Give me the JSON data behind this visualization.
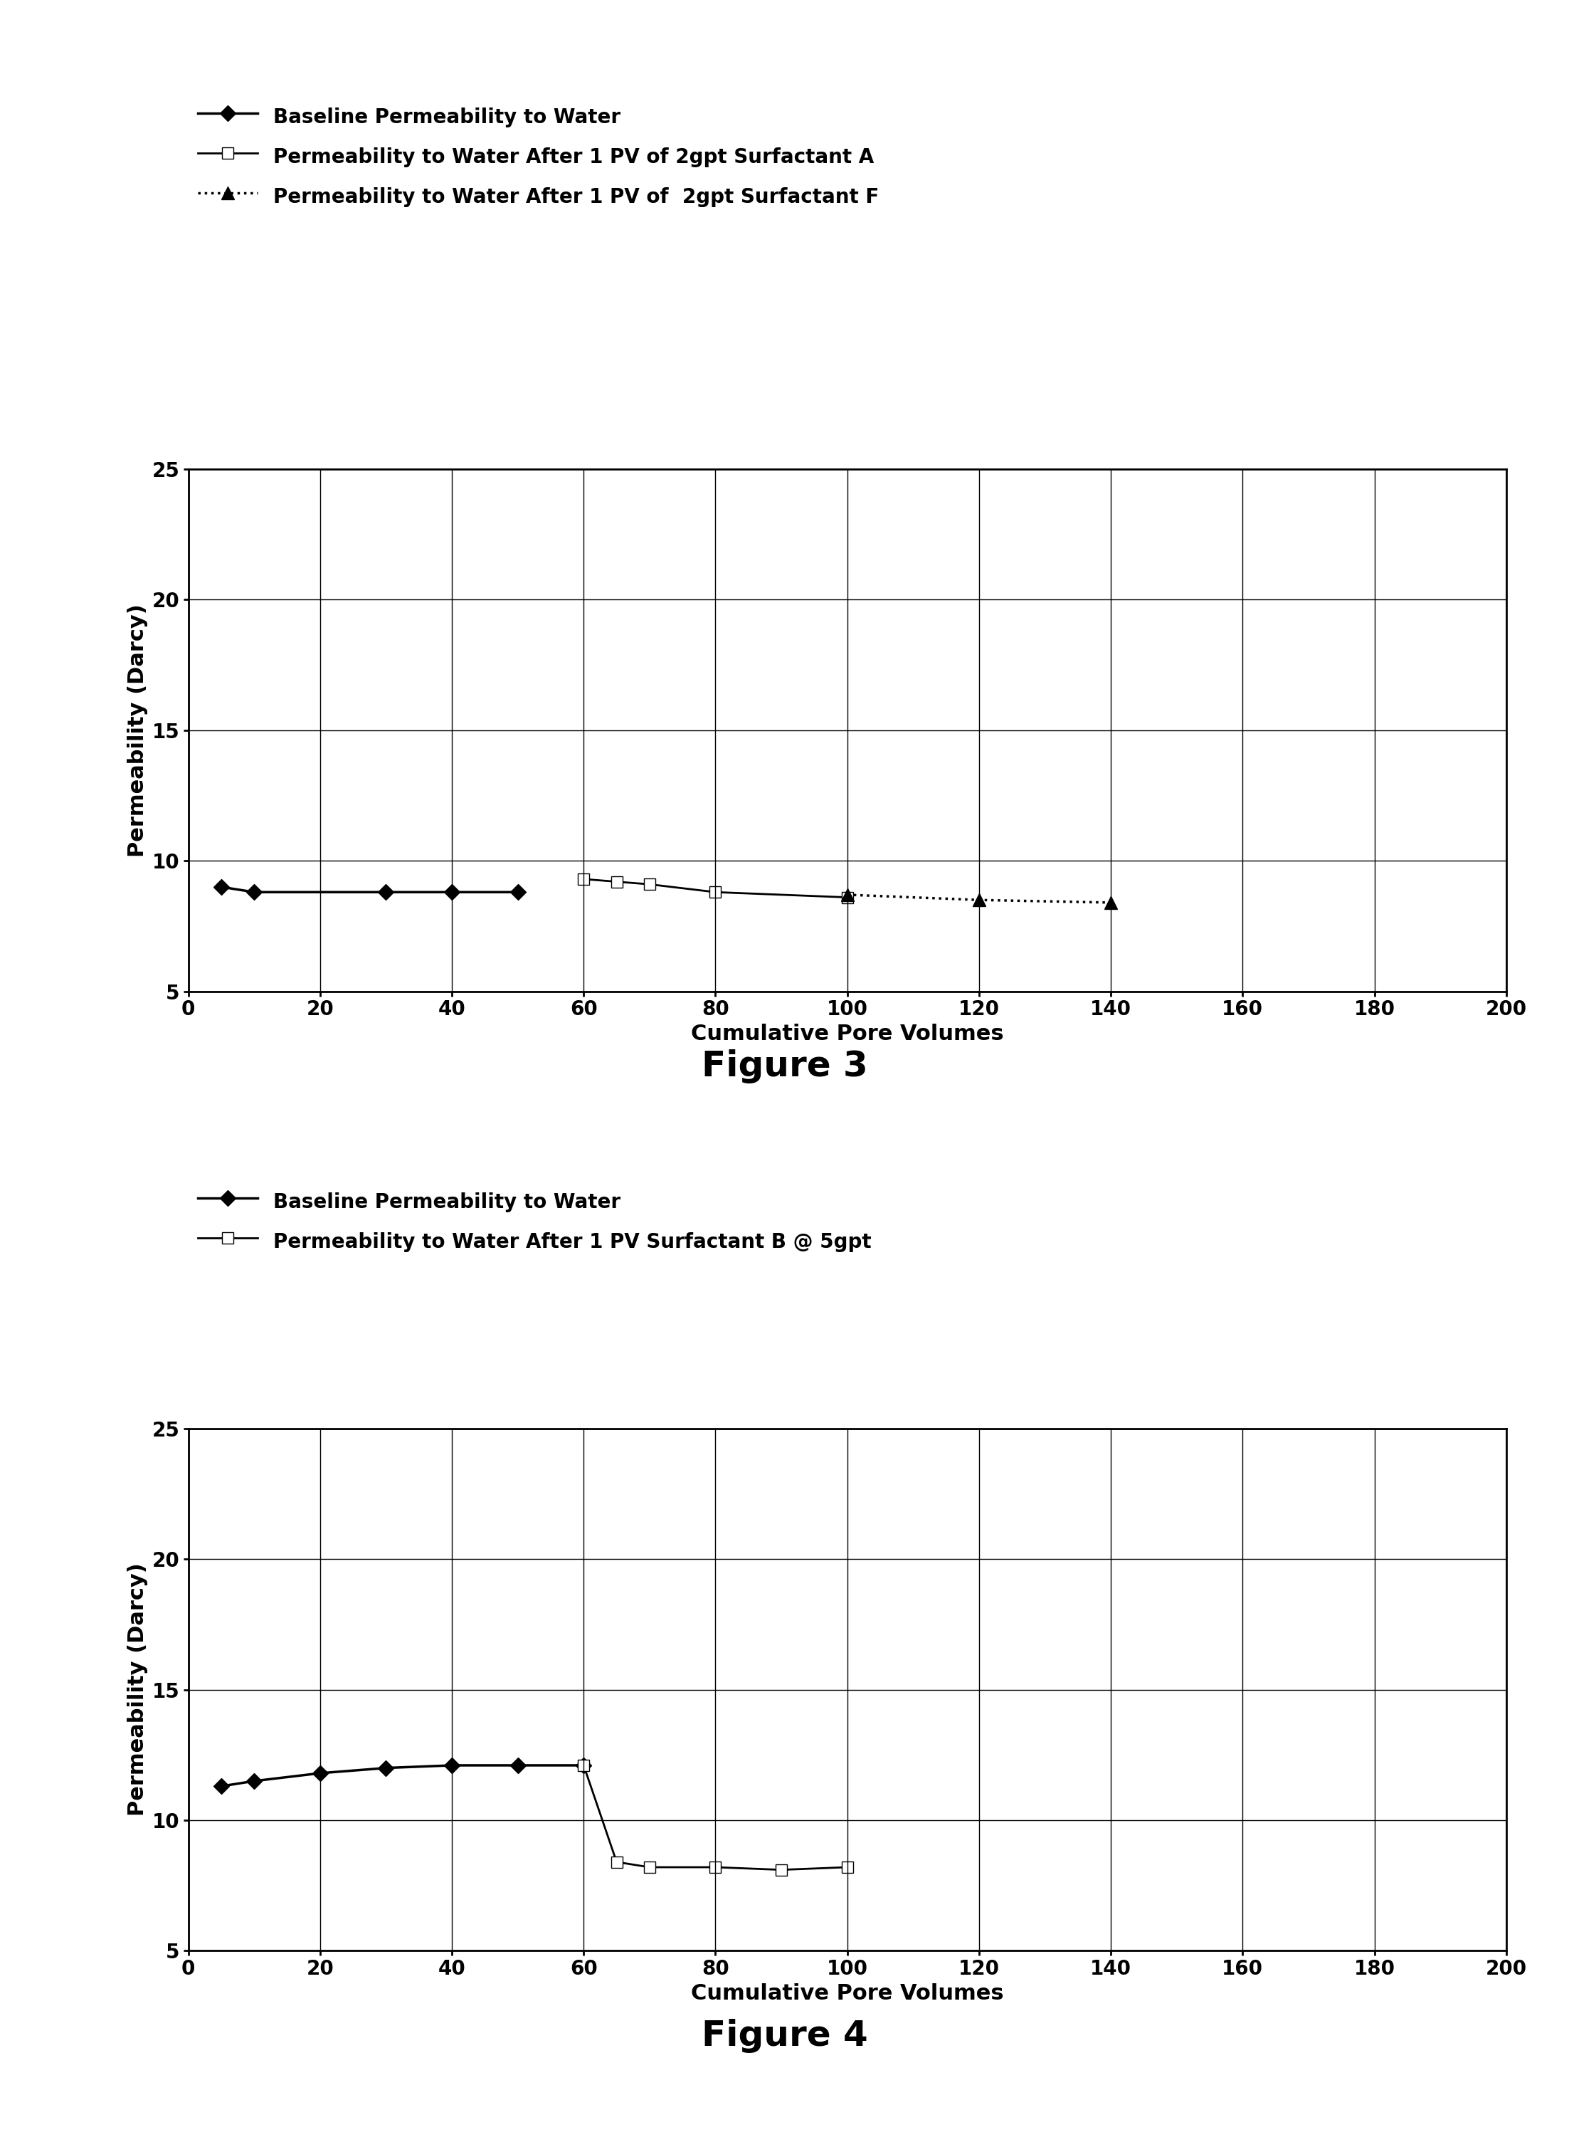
{
  "fig3": {
    "legend": [
      "Baseline Permeability to Water",
      "Permeability to Water After 1 PV of 2gpt Surfactant A",
      "Permeability to Water After 1 PV of  2gpt Surfactant F"
    ],
    "series1": {
      "x": [
        5,
        10,
        30,
        40,
        50
      ],
      "y": [
        9.0,
        8.8,
        8.8,
        8.8,
        8.8
      ],
      "color": "black",
      "linestyle": "-",
      "marker": "D",
      "markersize": 11,
      "markerfacecolor": "black",
      "linewidth": 2.5
    },
    "series2": {
      "x": [
        60,
        65,
        70,
        80,
        100
      ],
      "y": [
        9.3,
        9.2,
        9.1,
        8.8,
        8.6
      ],
      "color": "black",
      "linestyle": "-",
      "marker": "s",
      "markersize": 12,
      "markerfacecolor": "white",
      "linewidth": 2.0
    },
    "series3": {
      "x": [
        100,
        120,
        140
      ],
      "y": [
        8.7,
        8.5,
        8.4
      ],
      "color": "black",
      "linestyle": ":",
      "marker": "^",
      "markersize": 13,
      "markerfacecolor": "black",
      "linewidth": 2.5
    },
    "ylabel": "Permeability (Darcy)",
    "xlabel": "Cumulative Pore Volumes",
    "ylim": [
      5,
      25
    ],
    "xlim": [
      0,
      200
    ],
    "yticks": [
      5,
      10,
      15,
      20,
      25
    ],
    "xticks": [
      0,
      20,
      40,
      60,
      80,
      100,
      120,
      140,
      160,
      180,
      200
    ],
    "figure_label": "Figure 3"
  },
  "fig4": {
    "legend": [
      "Baseline Permeability to Water",
      "Permeability to Water After 1 PV Surfactant B @ 5gpt"
    ],
    "series1": {
      "x": [
        5,
        10,
        20,
        30,
        40,
        50,
        60
      ],
      "y": [
        11.3,
        11.5,
        11.8,
        12.0,
        12.1,
        12.1,
        12.1
      ],
      "color": "black",
      "linestyle": "-",
      "marker": "D",
      "markersize": 11,
      "markerfacecolor": "black",
      "linewidth": 2.5
    },
    "series2": {
      "x": [
        60,
        65,
        70,
        80,
        90,
        100
      ],
      "y": [
        12.1,
        8.4,
        8.2,
        8.2,
        8.1,
        8.2
      ],
      "color": "black",
      "linestyle": "-",
      "marker": "s",
      "markersize": 12,
      "markerfacecolor": "white",
      "linewidth": 2.0
    },
    "ylabel": "Permeability (Darcy)",
    "xlabel": "Cumulative Pore Volumes",
    "ylim": [
      5,
      25
    ],
    "xlim": [
      0,
      200
    ],
    "yticks": [
      5,
      10,
      15,
      20,
      25
    ],
    "xticks": [
      0,
      20,
      40,
      60,
      80,
      100,
      120,
      140,
      160,
      180,
      200
    ],
    "figure_label": "Figure 4"
  },
  "background_color": "#ffffff",
  "grid_color": "#000000",
  "legend_fontsize": 20,
  "axis_label_fontsize": 22,
  "tick_fontsize": 20,
  "figure_label_fontsize": 36
}
